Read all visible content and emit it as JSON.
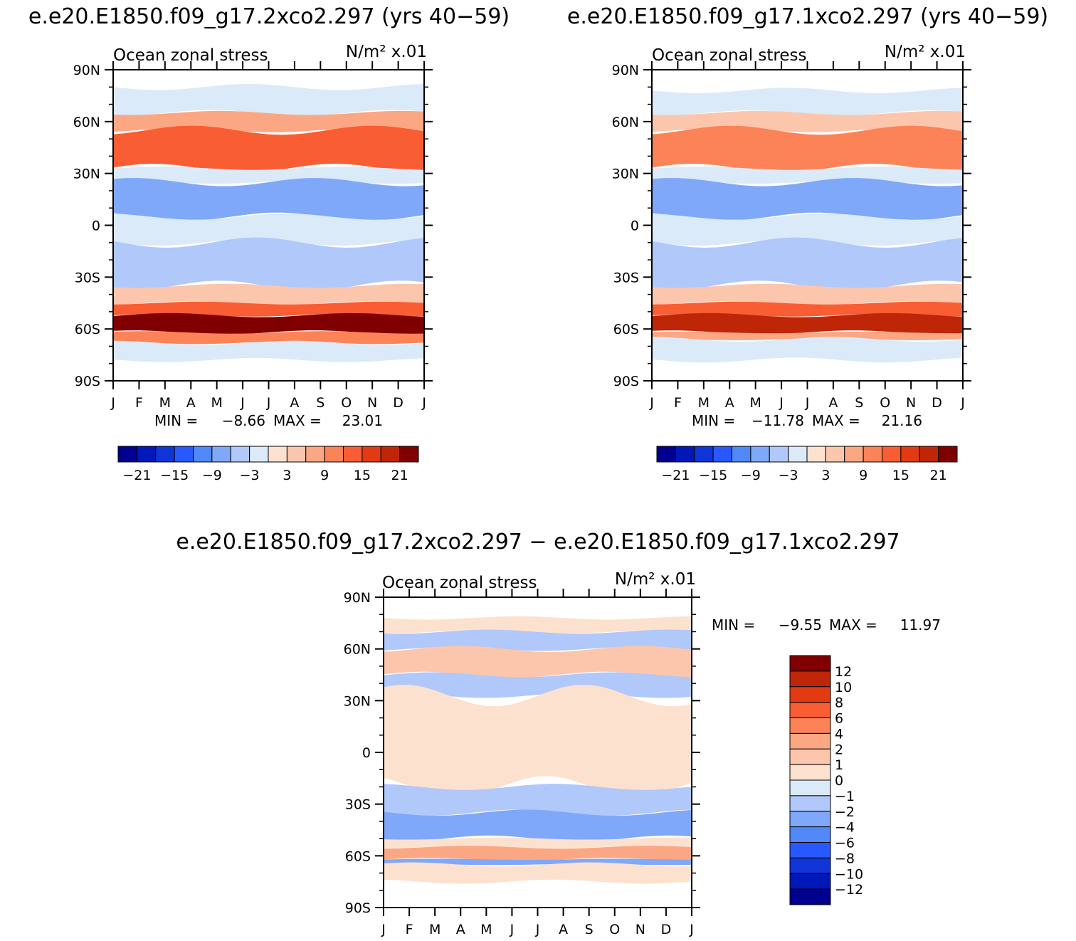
{
  "chart_data": [
    {
      "type": "heatmap",
      "id": "p1",
      "title": "e.e20.E1850.f09_g17.2xco2.297 (yrs 40−59)",
      "subtitle_left": "Ocean zonal stress",
      "subtitle_right": "N/m² x.01",
      "y_ticks": [
        "90N",
        "60N",
        "30N",
        "0",
        "30S",
        "60S",
        "90S"
      ],
      "x_ticks": [
        "J",
        "F",
        "M",
        "A",
        "M",
        "J",
        "J",
        "A",
        "S",
        "O",
        "N",
        "D",
        "J"
      ],
      "x_range_months": [
        0,
        12
      ],
      "y_range_deg": [
        -90,
        90
      ],
      "min_label": "MIN =",
      "min_value": "−8.66",
      "max_label": "MAX =",
      "max_value": "23.01",
      "legend_levels": [
        -24,
        -21,
        -18,
        -15,
        -12,
        -9,
        -6,
        -3,
        0,
        3,
        6,
        9,
        12,
        15,
        18,
        21,
        24
      ],
      "legend_labels": [
        "−21",
        "−15",
        "−9",
        "−3",
        "3",
        "9",
        "15",
        "21"
      ],
      "bands": [
        {
          "lat": [
            65,
            80
          ],
          "value": -2
        },
        {
          "lat": [
            55,
            65
          ],
          "value": 6
        },
        {
          "lat": [
            33,
            55
          ],
          "value": 12
        },
        {
          "lat": [
            25,
            33
          ],
          "value": -3
        },
        {
          "lat": [
            5,
            25
          ],
          "value": -8
        },
        {
          "lat": [
            -10,
            5
          ],
          "value": -2
        },
        {
          "lat": [
            -35,
            -10
          ],
          "value": -6
        },
        {
          "lat": [
            -45,
            -35
          ],
          "value": 5
        },
        {
          "lat": [
            -52,
            -45
          ],
          "value": 13
        },
        {
          "lat": [
            -62,
            -52
          ],
          "value": 21
        },
        {
          "lat": [
            -68,
            -62
          ],
          "value": 10
        },
        {
          "lat": [
            -78,
            -68
          ],
          "value": -2
        }
      ]
    },
    {
      "type": "heatmap",
      "id": "p2",
      "title": "e.e20.E1850.f09_g17.1xco2.297 (yrs 40−59)",
      "subtitle_left": "Ocean zonal stress",
      "subtitle_right": "N/m² x.01",
      "y_ticks": [
        "90N",
        "60N",
        "30N",
        "0",
        "30S",
        "60S",
        "90S"
      ],
      "x_ticks": [
        "J",
        "F",
        "M",
        "A",
        "M",
        "J",
        "J",
        "A",
        "S",
        "O",
        "N",
        "D",
        "J"
      ],
      "x_range_months": [
        0,
        12
      ],
      "y_range_deg": [
        -90,
        90
      ],
      "min_label": "MIN =",
      "min_value": "−11.78",
      "max_label": "MAX =",
      "max_value": "21.16",
      "legend_levels": [
        -24,
        -21,
        -18,
        -15,
        -12,
        -9,
        -6,
        -3,
        0,
        3,
        6,
        9,
        12,
        15,
        18,
        21,
        24
      ],
      "legend_labels": [
        "−21",
        "−15",
        "−9",
        "−3",
        "3",
        "9",
        "15",
        "21"
      ],
      "bands": [
        {
          "lat": [
            65,
            78
          ],
          "value": -2
        },
        {
          "lat": [
            55,
            65
          ],
          "value": 4
        },
        {
          "lat": [
            33,
            55
          ],
          "value": 10
        },
        {
          "lat": [
            25,
            33
          ],
          "value": -3
        },
        {
          "lat": [
            5,
            25
          ],
          "value": -8
        },
        {
          "lat": [
            -10,
            5
          ],
          "value": -2
        },
        {
          "lat": [
            -35,
            -10
          ],
          "value": -6
        },
        {
          "lat": [
            -45,
            -35
          ],
          "value": 5
        },
        {
          "lat": [
            -52,
            -45
          ],
          "value": 13
        },
        {
          "lat": [
            -62,
            -52
          ],
          "value": 19
        },
        {
          "lat": [
            -66,
            -62
          ],
          "value": 8
        },
        {
          "lat": [
            -78,
            -66
          ],
          "value": -2
        }
      ]
    },
    {
      "type": "heatmap",
      "id": "p3",
      "title": "e.e20.E1850.f09_g17.2xco2.297 − e.e20.E1850.f09_g17.1xco2.297",
      "subtitle_left": "Ocean zonal stress",
      "subtitle_right": "N/m² x.01",
      "y_ticks": [
        "90N",
        "60N",
        "30N",
        "0",
        "30S",
        "60S",
        "90S"
      ],
      "x_ticks": [
        "J",
        "F",
        "M",
        "A",
        "M",
        "J",
        "J",
        "A",
        "S",
        "O",
        "N",
        "D",
        "J"
      ],
      "x_range_months": [
        0,
        12
      ],
      "y_range_deg": [
        -90,
        90
      ],
      "min_label": "MIN =",
      "min_value": "−9.55",
      "max_label": "MAX =",
      "max_value": "11.97",
      "legend_levels": [
        14,
        12,
        10,
        8,
        6,
        4,
        2,
        1,
        0,
        -1,
        -2,
        -4,
        -6,
        -8,
        -10,
        -12,
        -14
      ],
      "legend_labels": [
        "12",
        "10",
        "8",
        "6",
        "4",
        "2",
        "1",
        "0",
        "−1",
        "−2",
        "−4",
        "−6",
        "−8",
        "−10",
        "−12"
      ],
      "bands": [
        {
          "lat": [
            70,
            78
          ],
          "value": 0.5
        },
        {
          "lat": [
            60,
            70
          ],
          "value": -2
        },
        {
          "lat": [
            45,
            60
          ],
          "value": 1.5
        },
        {
          "lat": [
            33,
            45
          ],
          "value": -1.5
        },
        {
          "lat": [
            -20,
            33
          ],
          "value": 0.5
        },
        {
          "lat": [
            -35,
            -20
          ],
          "value": -1.5
        },
        {
          "lat": [
            -50,
            -35
          ],
          "value": -3
        },
        {
          "lat": [
            -55,
            -50
          ],
          "value": 0.5
        },
        {
          "lat": [
            -62,
            -55
          ],
          "value": 3
        },
        {
          "lat": [
            -65,
            -62
          ],
          "value": -3
        },
        {
          "lat": [
            -75,
            -65
          ],
          "value": 0.5
        }
      ]
    }
  ],
  "colors": {
    "neg": [
      "#000090",
      "#0018b8",
      "#0f34d8",
      "#2858ff",
      "#5088f8",
      "#80a8f8",
      "#b0c8fa",
      "#daeaf8"
    ],
    "pos": [
      "#fde1cf",
      "#fcc6ad",
      "#fba784",
      "#fc8258",
      "#f95d34",
      "#e23a12",
      "#bf2608",
      "#800000"
    ],
    "axis": "#000000"
  }
}
